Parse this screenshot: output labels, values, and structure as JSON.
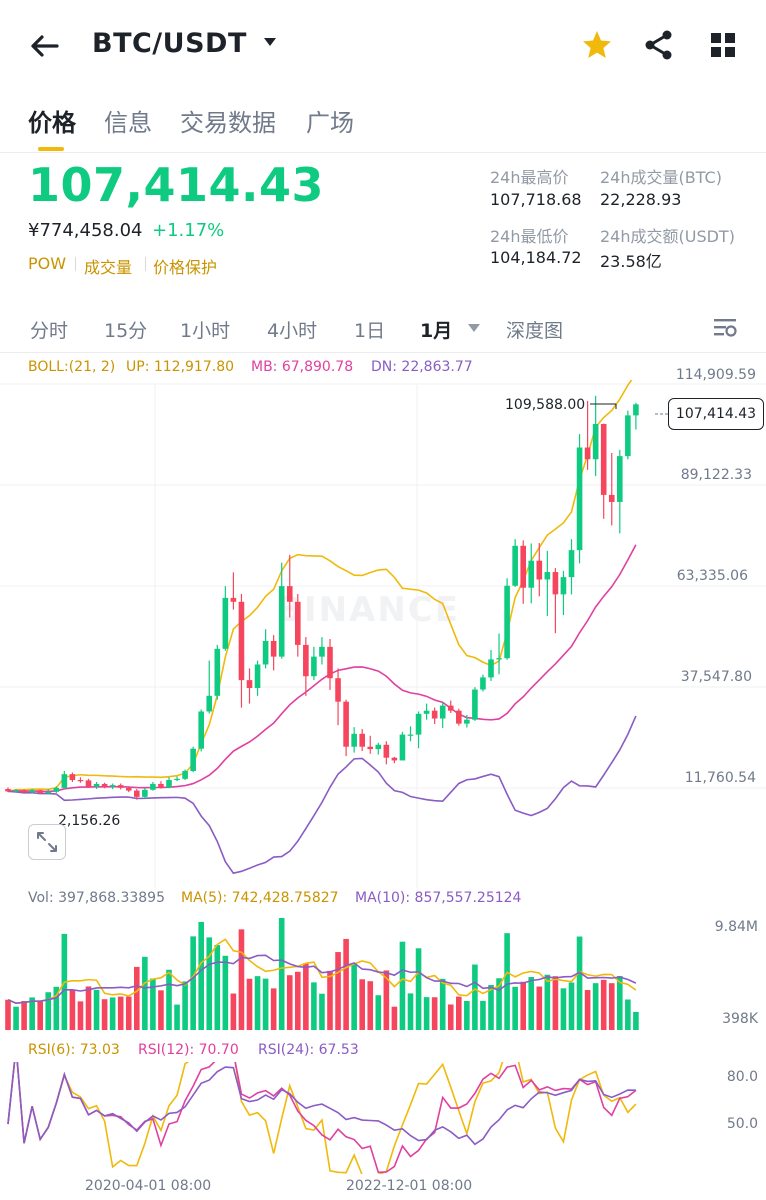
{
  "header": {
    "title": "BTC/USDT",
    "icons": [
      "back-arrow-icon",
      "caret-down-icon",
      "star-icon",
      "share-icon",
      "grid-icon"
    ],
    "star_color": "#f0b90b"
  },
  "tabs": [
    {
      "label": "价格",
      "active": true
    },
    {
      "label": "信息",
      "active": false
    },
    {
      "label": "交易数据",
      "active": false
    },
    {
      "label": "广场",
      "active": false
    }
  ],
  "price": {
    "last": "107,414.43",
    "cny": "¥774,458.04",
    "change_pct": "+1.17%",
    "tags": [
      "POW",
      "成交量",
      "价格保护"
    ]
  },
  "stats": {
    "high_label": "24h最高价",
    "high_value": "107,718.68",
    "vol_btc_label": "24h成交量(BTC)",
    "vol_btc_value": "22,228.93",
    "low_label": "24h最低价",
    "low_value": "104,184.72",
    "vol_usdt_label": "24h成交额(USDT)",
    "vol_usdt_value": "23.58亿"
  },
  "intervals": [
    {
      "label": "分时",
      "active": false
    },
    {
      "label": "15分",
      "active": false
    },
    {
      "label": "1小时",
      "active": false
    },
    {
      "label": "4小时",
      "active": false
    },
    {
      "label": "1日",
      "active": false
    },
    {
      "label": "1月",
      "active": true
    },
    {
      "label": "深度图",
      "active": false
    }
  ],
  "boll": {
    "label": "BOLL:(21, 2)",
    "up": "UP: 112,917.80",
    "mb": "MB: 67,890.78",
    "dn": "DN: 22,863.77"
  },
  "price_axis": [
    "114,909.59",
    "89,122.33",
    "63,335.06",
    "37,547.80",
    "11,760.54"
  ],
  "markers": {
    "high": "109,588.00",
    "last": "107,414.43",
    "low": "2,156.26"
  },
  "watermark": "BINANCE",
  "volume": {
    "vol": "Vol: 397,868.33895",
    "ma5": "MA(5): 742,428.75827",
    "ma10": "MA(10): 857,557.25124",
    "axis_top": "9.84M",
    "axis_bottom": "398K"
  },
  "rsi": {
    "rsi6": "RSI(6): 73.03",
    "rsi12": "RSI(12): 70.70",
    "rsi24": "RSI(24): 67.53",
    "axis_top": "80.0",
    "axis_bottom": "50.0"
  },
  "time_axis": [
    "2020-04-01 08:00",
    "2022-12-01 08:00"
  ],
  "colors": {
    "up": "#0ecb81",
    "down": "#f6465d",
    "accent": "#f0b90b",
    "boll_up": "#f0b90b",
    "boll_mb": "#e040a0",
    "boll_dn": "#8a5cc4",
    "label_gold": "#c99400"
  },
  "chart_data": {
    "type": "candlestick",
    "interval": "1月",
    "price_range": [
      11760.54,
      114909.59
    ],
    "candles": [
      [
        9200,
        8600,
        9600,
        8400
      ],
      [
        8600,
        8900,
        9200,
        8400
      ],
      [
        8900,
        8400,
        9100,
        8000
      ],
      [
        8400,
        8900,
        9300,
        8100
      ],
      [
        8900,
        8200,
        9000,
        7900
      ],
      [
        8200,
        8500,
        9200,
        7800
      ],
      [
        8500,
        9500,
        9900,
        8200
      ],
      [
        9500,
        13000,
        13800,
        9200
      ],
      [
        13000,
        11500,
        13400,
        11000
      ],
      [
        11500,
        11400,
        12200,
        10800
      ],
      [
        11400,
        9800,
        11800,
        9500
      ],
      [
        9800,
        10500,
        11000,
        9200
      ],
      [
        10500,
        9800,
        10800,
        9400
      ],
      [
        9800,
        10200,
        10600,
        9200
      ],
      [
        10200,
        9500,
        10600,
        9100
      ],
      [
        9500,
        8800,
        9800,
        8400
      ],
      [
        8800,
        7200,
        9200,
        6500
      ],
      [
        7200,
        9000,
        9400,
        6800
      ],
      [
        9000,
        10500,
        11000,
        8800
      ],
      [
        10500,
        9600,
        11200,
        9300
      ],
      [
        9600,
        11500,
        12200,
        9400
      ],
      [
        11500,
        11800,
        12400,
        11200
      ],
      [
        11800,
        13800,
        14200,
        11500
      ],
      [
        13800,
        19500,
        20000,
        13500
      ],
      [
        19500,
        29000,
        29500,
        18800
      ],
      [
        29000,
        33000,
        42000,
        28500
      ],
      [
        33000,
        45000,
        46000,
        32000
      ],
      [
        45000,
        58000,
        61000,
        44500
      ],
      [
        58000,
        57000,
        64500,
        55000
      ],
      [
        57000,
        37000,
        59000,
        30000
      ],
      [
        37000,
        35000,
        40000,
        31000
      ],
      [
        35000,
        41000,
        42000,
        33000
      ],
      [
        41000,
        47000,
        50000,
        40000
      ],
      [
        47000,
        43000,
        48500,
        39500
      ],
      [
        43000,
        61000,
        67000,
        42500
      ],
      [
        61000,
        57000,
        69000,
        53000
      ],
      [
        57000,
        46000,
        59000,
        43000
      ],
      [
        46000,
        38000,
        48000,
        33000
      ],
      [
        38000,
        43000,
        45500,
        37000
      ],
      [
        43000,
        45500,
        48000,
        41000
      ],
      [
        45500,
        37500,
        47500,
        34500
      ],
      [
        37500,
        31500,
        40000,
        25500
      ],
      [
        31500,
        20000,
        32000,
        17600
      ],
      [
        20000,
        23300,
        25000,
        18500
      ],
      [
        23300,
        20000,
        24500,
        18900
      ],
      [
        20000,
        19400,
        22800,
        18200
      ],
      [
        19400,
        20500,
        21000,
        18000
      ],
      [
        20500,
        17200,
        21400,
        15500
      ],
      [
        17200,
        16500,
        17400,
        15800
      ],
      [
        16500,
        23100,
        23800,
        16500
      ],
      [
        23100,
        23100,
        25200,
        21400
      ],
      [
        23100,
        28400,
        29000,
        19600
      ],
      [
        28400,
        29200,
        31000,
        26900
      ],
      [
        29200,
        27200,
        30000,
        25800
      ],
      [
        27200,
        30500,
        31400,
        24800
      ],
      [
        30500,
        29200,
        31800,
        28600
      ],
      [
        29200,
        25900,
        29700,
        25400
      ],
      [
        25900,
        26900,
        28100,
        24900
      ],
      [
        26900,
        34600,
        35200,
        26600
      ],
      [
        34600,
        37700,
        38400,
        34100
      ],
      [
        37700,
        42300,
        44700,
        36800
      ],
      [
        42300,
        42600,
        48900,
        38500
      ],
      [
        42600,
        61100,
        63000,
        42200
      ],
      [
        61100,
        71300,
        73000,
        60800
      ],
      [
        71300,
        60600,
        72700,
        56500
      ],
      [
        60600,
        67500,
        71900,
        56600
      ],
      [
        67500,
        62700,
        72000,
        58400
      ],
      [
        62700,
        64600,
        70000,
        53400
      ],
      [
        64600,
        58900,
        65600,
        49000
      ],
      [
        58900,
        63300,
        64900,
        53600
      ],
      [
        63300,
        70200,
        73000,
        58900
      ],
      [
        70200,
        96400,
        99800,
        66800
      ],
      [
        96400,
        93400,
        108300,
        90700
      ],
      [
        93400,
        102400,
        109600,
        89100
      ],
      [
        102400,
        84300,
        102500,
        78200
      ],
      [
        84300,
        82500,
        95000,
        76500
      ],
      [
        82500,
        94200,
        95800,
        74500
      ],
      [
        94200,
        104600,
        105800,
        93400
      ],
      [
        104600,
        107414,
        107800,
        101000
      ]
    ]
  }
}
